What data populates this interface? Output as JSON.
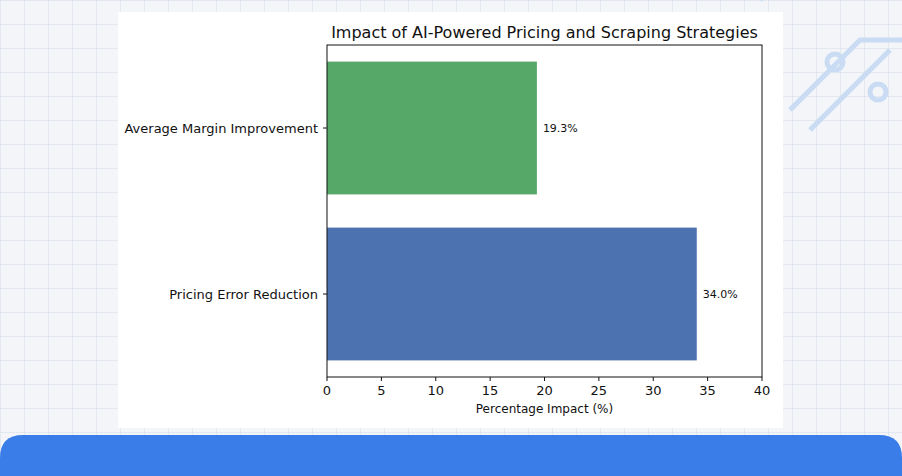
{
  "chart_data": {
    "type": "bar",
    "orientation": "horizontal",
    "title": "Impact of AI-Powered Pricing and Scraping Strategies",
    "x_label": "Percentage Impact (%)",
    "categories": [
      "Pricing Error Reduction",
      "Average Margin Improvement"
    ],
    "values": [
      34.0,
      19.3
    ],
    "value_labels": [
      "34.0%",
      "19.3%"
    ],
    "colors": [
      "#4c72b0",
      "#55a868"
    ],
    "xlim": [
      0,
      40
    ],
    "xticks": [
      0,
      5,
      10,
      15,
      20,
      25,
      30,
      35,
      40
    ],
    "grid": false,
    "data_labels": true
  }
}
